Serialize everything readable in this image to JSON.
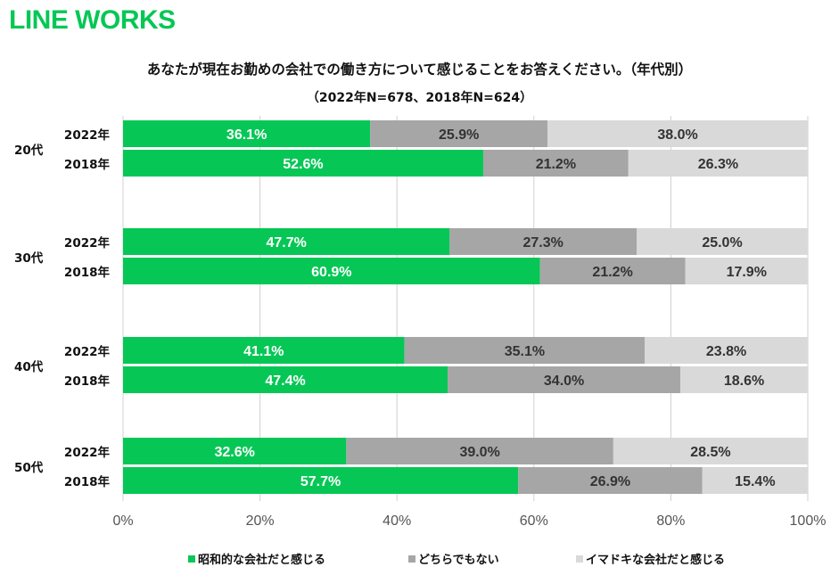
{
  "logo": "LINE WORKS",
  "title": "あなたが現在お勤めの会社での働き方について感じることをお答えください。（年代別）",
  "subtitle": "（2022年N=678、2018年N=624）",
  "colors": {
    "green": "#06c755",
    "mid": "#a6a6a6",
    "light": "#d9d9d9"
  },
  "chart_data": {
    "type": "bar",
    "orientation": "horizontal-stacked-100",
    "xlim": [
      0,
      100
    ],
    "x_ticks": [
      "0%",
      "20%",
      "40%",
      "60%",
      "80%",
      "100%"
    ],
    "legend_position": "bottom",
    "series": [
      {
        "name": "昭和的な会社だと感じる",
        "color": "#06c755"
      },
      {
        "name": "どちらでもない",
        "color": "#a6a6a6"
      },
      {
        "name": "イマドキな会社だと感じる",
        "color": "#d9d9d9"
      }
    ],
    "groups": [
      {
        "label": "20代",
        "rows": [
          {
            "label": "2022年",
            "values": [
              36.1,
              25.9,
              38.0
            ],
            "labels": [
              "36.1%",
              "25.9%",
              "38.0%"
            ]
          },
          {
            "label": "2018年",
            "values": [
              52.6,
              21.2,
              26.3
            ],
            "labels": [
              "52.6%",
              "21.2%",
              "26.3%"
            ]
          }
        ]
      },
      {
        "label": "30代",
        "rows": [
          {
            "label": "2022年",
            "values": [
              47.7,
              27.3,
              25.0
            ],
            "labels": [
              "47.7%",
              "27.3%",
              "25.0%"
            ]
          },
          {
            "label": "2018年",
            "values": [
              60.9,
              21.2,
              17.9
            ],
            "labels": [
              "60.9%",
              "21.2%",
              "17.9%"
            ]
          }
        ]
      },
      {
        "label": "40代",
        "rows": [
          {
            "label": "2022年",
            "values": [
              41.1,
              35.1,
              23.8
            ],
            "labels": [
              "41.1%",
              "35.1%",
              "23.8%"
            ]
          },
          {
            "label": "2018年",
            "values": [
              47.4,
              34.0,
              18.6
            ],
            "labels": [
              "47.4%",
              "34.0%",
              "18.6%"
            ]
          }
        ]
      },
      {
        "label": "50代",
        "rows": [
          {
            "label": "2022年",
            "values": [
              32.6,
              39.0,
              28.5
            ],
            "labels": [
              "32.6%",
              "39.0%",
              "28.5%"
            ]
          },
          {
            "label": "2018年",
            "values": [
              57.7,
              26.9,
              15.4
            ],
            "labels": [
              "57.7%",
              "26.9%",
              "15.4%"
            ]
          }
        ]
      }
    ]
  }
}
